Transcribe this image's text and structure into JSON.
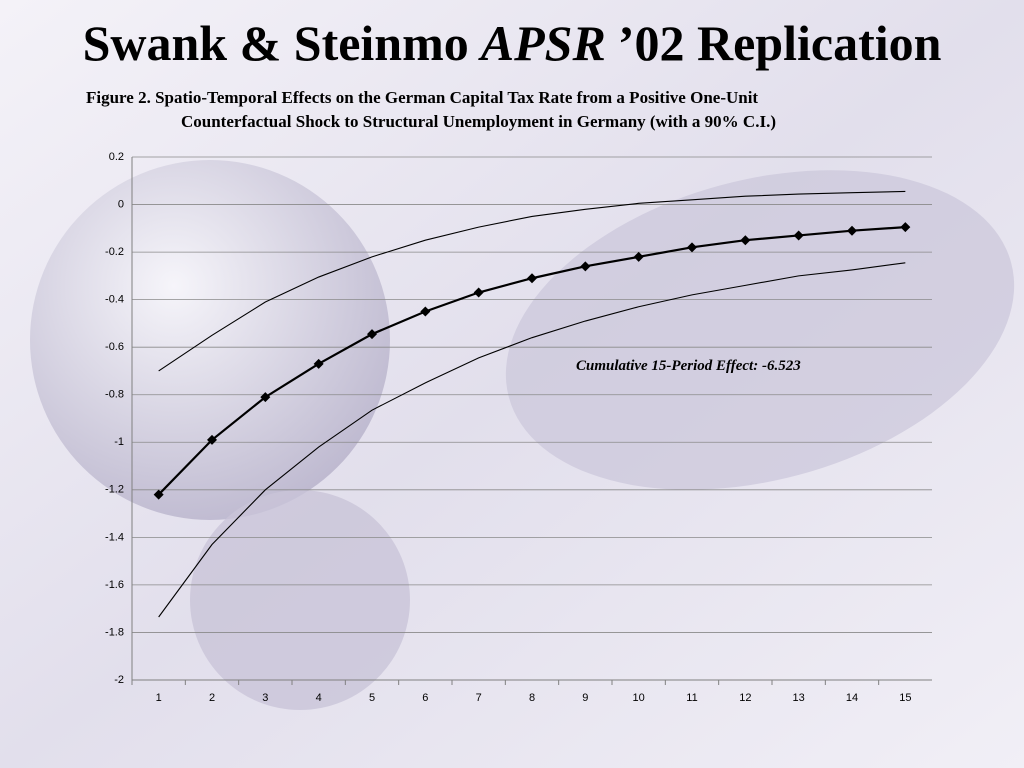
{
  "chart_data": {
    "type": "line",
    "title": [
      "Swank & Steinmo",
      "APSR",
      "’02 Replication"
    ],
    "subtitle": [
      "Figure 2. Spatio-Temporal Effects on the German Capital Tax Rate from a Positive One-Unit",
      "Counterfactual Shock to Structural Unemployment in Germany (with a 90% C.I.)"
    ],
    "annotation": "Cumulative 15-Period Effect: -6.523",
    "categories": [
      "1",
      "2",
      "3",
      "4",
      "5",
      "6",
      "7",
      "8",
      "9",
      "10",
      "11",
      "12",
      "13",
      "14",
      "15"
    ],
    "series": [
      {
        "color": "#000000",
        "marker": "diamond",
        "values": [
          -1.22,
          -0.99,
          -0.81,
          -0.67,
          -0.545,
          -0.45,
          -0.37,
          -0.31,
          -0.26,
          -0.22,
          -0.18,
          -0.15,
          -0.13,
          -0.11,
          -0.095
        ]
      },
      {
        "color": "#000000",
        "values": [
          -0.7,
          -0.55,
          -0.41,
          -0.305,
          -0.22,
          -0.15,
          -0.095,
          -0.05,
          -0.02,
          0.005,
          0.02,
          0.035,
          0.044,
          0.05,
          0.055
        ]
      },
      {
        "color": "#000000",
        "values": [
          -1.735,
          -1.43,
          -1.2,
          -1.02,
          -0.865,
          -0.75,
          -0.645,
          -0.56,
          -0.49,
          -0.43,
          -0.38,
          -0.34,
          -0.3,
          -0.275,
          -0.245
        ]
      }
    ],
    "ylim": [
      -2,
      0.2
    ],
    "yticks": [
      0.2,
      0,
      -0.2,
      -0.4,
      -0.6,
      -0.8,
      -1,
      -1.2,
      -1.4,
      -1.6,
      -1.8,
      -2
    ],
    "grid": true
  }
}
